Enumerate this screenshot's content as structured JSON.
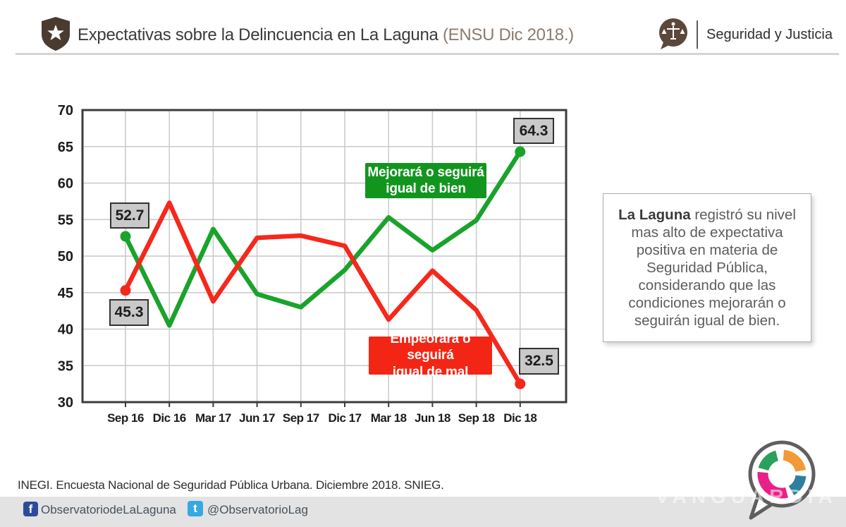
{
  "header": {
    "title": "Expectativas sobre la Delincuencia en La Laguna ",
    "title_suffix": "(ENSU Dic 2018.)",
    "right_label": "Seguridad y Justicia",
    "accent_brown": "#4a3b31"
  },
  "chart_data": {
    "type": "line",
    "categories": [
      "Sep 16",
      "Dic 16",
      "Mar 17",
      "Jun 17",
      "Sep 17",
      "Dic 17",
      "Mar 18",
      "Jun 18",
      "Sep 18",
      "Dic 18"
    ],
    "series": [
      {
        "name": "Mejorará o seguirá igual de bien",
        "color": "#1aa32b",
        "values": [
          52.7,
          40.5,
          53.7,
          44.8,
          43.0,
          48.1,
          55.3,
          50.8,
          54.9,
          64.3
        ]
      },
      {
        "name": "Empeorará o seguirá igual de mal",
        "color": "#f5281c",
        "values": [
          45.3,
          57.3,
          43.8,
          52.5,
          52.8,
          51.4,
          41.3,
          48.0,
          42.6,
          32.5
        ]
      }
    ],
    "ylim": [
      30,
      70
    ],
    "ytick_step": 5,
    "grid": true,
    "legend_position": "inside-boxes",
    "annotations": {
      "green_start": "52.7",
      "red_start": "45.3",
      "green_end": "64.3",
      "red_end": "32.5"
    }
  },
  "series_boxes": {
    "green": {
      "line1": "Mejorará o seguirá",
      "line2": "igual de bien"
    },
    "red": {
      "line1": "Empeorará o seguirá",
      "line2": "igual de mal"
    }
  },
  "note": {
    "bold": "La Laguna",
    "rest": " registró su nivel mas alto de expectativa positiva en materia de Seguridad Pública, considerando que las condiciones mejorarán o seguirán igual de bien."
  },
  "footer": {
    "source": "INEGI. Encuesta Nacional de Seguridad Pública Urbana. Diciembre 2018. SNIEG.",
    "facebook_handle": "ObservatoriodeLaLaguna",
    "twitter_handle": "@ObservatorioLag",
    "watermark": "VANGUARDIA"
  }
}
